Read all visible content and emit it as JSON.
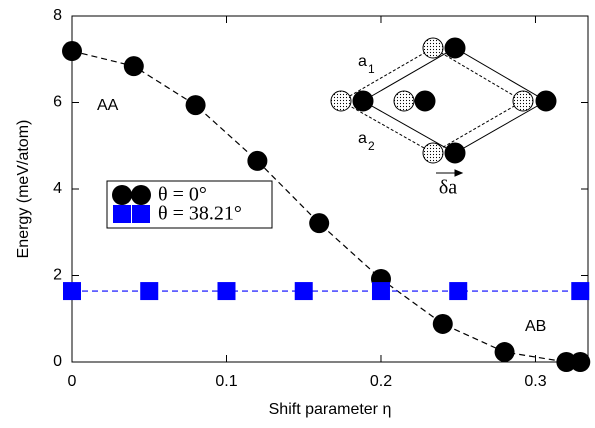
{
  "chart_data": {
    "type": "line",
    "x_label": "Shift parameter η",
    "y_label": "Energy (meV/atom)",
    "xlim": [
      0,
      0.334
    ],
    "ylim": [
      0,
      8
    ],
    "xticks": [
      0,
      0.1,
      0.2,
      0.3
    ],
    "yticks": [
      0,
      2,
      4,
      6,
      8
    ],
    "series": [
      {
        "name": "θ = 0°",
        "color": "#000000",
        "marker": "circle",
        "x": [
          0,
          0.04,
          0.08,
          0.12,
          0.16,
          0.2,
          0.24,
          0.28,
          0.32,
          0.329
        ],
        "values": [
          7.19,
          6.84,
          5.94,
          4.65,
          3.21,
          1.92,
          0.88,
          0.23,
          0,
          0
        ]
      },
      {
        "name": "θ = 38.21°",
        "color": "#0000ff",
        "marker": "square",
        "x": [
          0,
          0.05,
          0.1,
          0.15,
          0.2,
          0.25,
          0.329
        ],
        "values": [
          1.64,
          1.64,
          1.64,
          1.64,
          1.64,
          1.64,
          1.64
        ]
      }
    ],
    "annotations": [
      "AA",
      "AB"
    ],
    "inset_labels": [
      {
        "text": "a",
        "sub": "1"
      },
      {
        "text": "a",
        "sub": "2"
      },
      {
        "text": "δa"
      }
    ]
  }
}
